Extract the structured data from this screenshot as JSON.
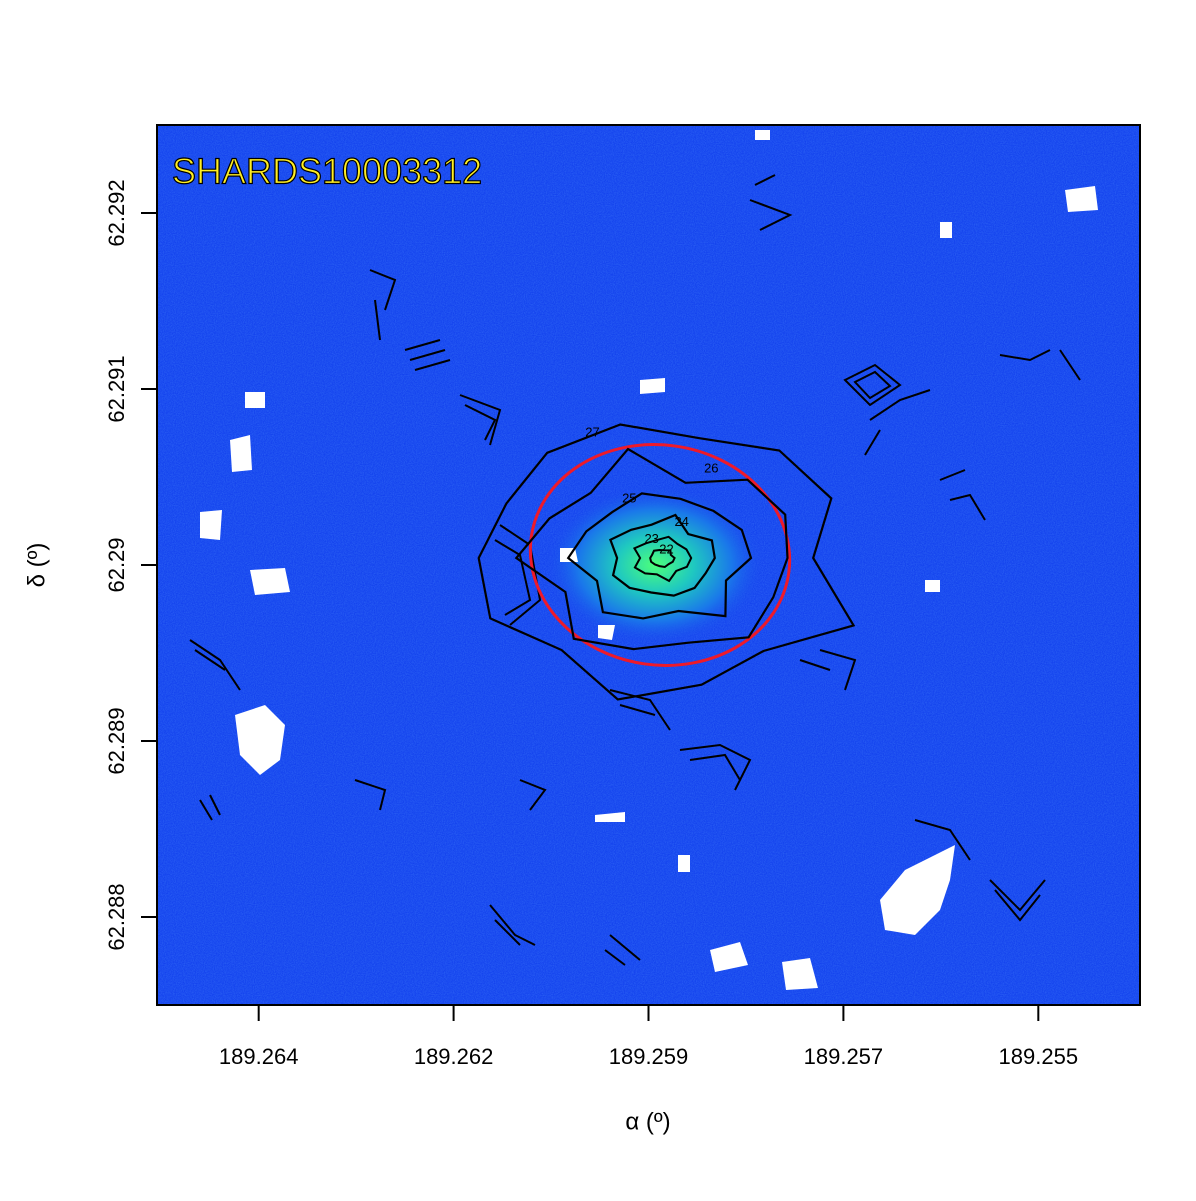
{
  "chart_data": {
    "type": "image",
    "title": "SHARDS10003312",
    "x_label": "α (º)",
    "y_label": "δ (º)",
    "xlim": [
      189.2651,
      189.2535
    ],
    "xticks": [
      {
        "value": 189.2639,
        "label": "189.264"
      },
      {
        "value": 189.2616,
        "label": "189.262"
      },
      {
        "value": 189.2593,
        "label": "189.259"
      },
      {
        "value": 189.257,
        "label": "189.257"
      },
      {
        "value": 189.2547,
        "label": "189.255"
      }
    ],
    "ylim": [
      62.2875,
      62.2925
    ],
    "yticks": [
      62.288,
      62.289,
      62.29,
      62.291,
      62.292
    ],
    "contour_levels": [
      22,
      23,
      24,
      25,
      26,
      27
    ]
  }
}
